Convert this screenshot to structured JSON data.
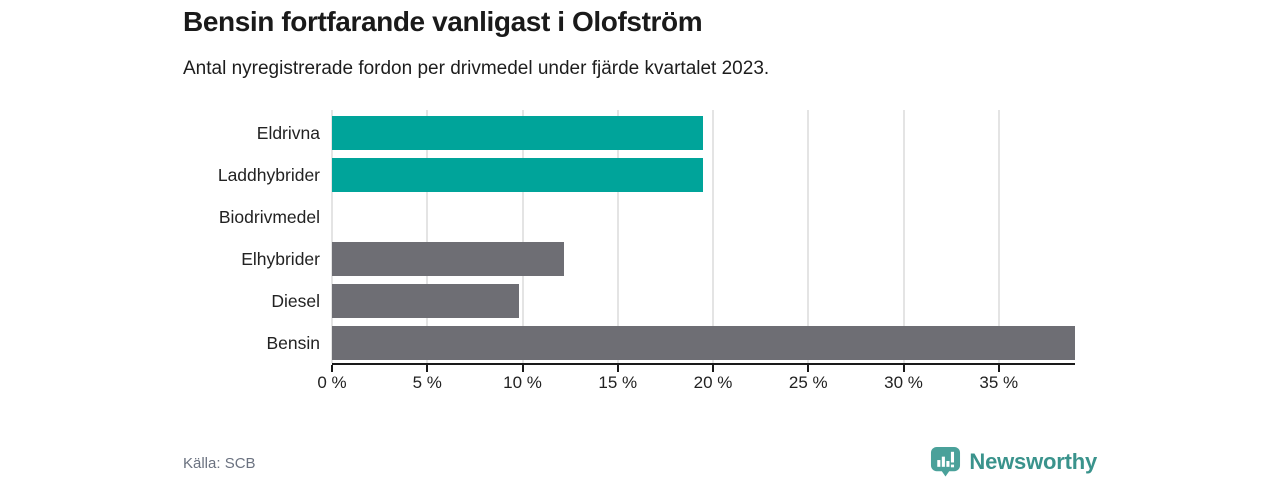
{
  "header": {
    "title": "Bensin fortfarande vanligast i Olofström",
    "subtitle": "Antal nyregistrerade fordon per drivmedel under fjärde kvartalet 2023."
  },
  "chart_data": {
    "type": "bar",
    "orientation": "horizontal",
    "title": "Bensin fortfarande vanligast i Olofström",
    "subtitle": "Antal nyregistrerade fordon per drivmedel under fjärde kvartalet 2023.",
    "categories": [
      "Eldrivna",
      "Laddhybrider",
      "Biodrivmedel",
      "Elhybrider",
      "Diesel",
      "Bensin"
    ],
    "values": [
      19.5,
      19.5,
      0,
      12.2,
      9.8,
      39.0
    ],
    "unit": "%",
    "bar_colors": [
      "#00a49a",
      "#00a49a",
      "#6e6e74",
      "#6e6e74",
      "#6e6e74",
      "#6e6e74"
    ],
    "xlabel": "",
    "ylabel": "",
    "xlim": [
      0,
      39
    ],
    "x_tick_values": [
      0,
      5,
      10,
      15,
      20,
      25,
      30,
      35
    ],
    "x_tick_labels": [
      "0 %",
      "5 %",
      "10 %",
      "15 %",
      "20 %",
      "25 %",
      "30 %",
      "35 %"
    ],
    "grid": "vertical-light",
    "legend": "none"
  },
  "colors": {
    "accent_teal": "#00a49a",
    "neutral_gray": "#6e6e74",
    "gridline": "#e4e4e4",
    "axis": "#1a1a1a",
    "brand_teal": "#3a938c",
    "brand_icon_teal": "#4aa19a"
  },
  "footer": {
    "source": "Källa: SCB",
    "brand": "Newsworthy"
  }
}
